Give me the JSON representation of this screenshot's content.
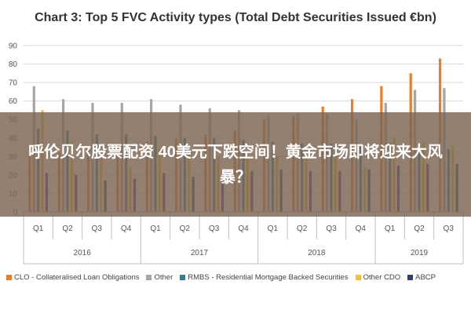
{
  "banner": {
    "text": "呼伦贝尔股票配资 40美元下跌空间！黄金市场即将迎来大风暴？"
  },
  "chart_data": {
    "type": "bar",
    "title": "Chart 3: Top 5 FVC Activity types (Total Debt Securities Issued €bn)",
    "xlabel": "",
    "ylabel": "",
    "ylim": [
      0,
      90
    ],
    "y_ticks": [
      0,
      10,
      20,
      30,
      40,
      50,
      60,
      70,
      80,
      90
    ],
    "grid": true,
    "legend_position": "bottom",
    "categories": [
      "Q1",
      "Q2",
      "Q3",
      "Q4",
      "Q1",
      "Q2",
      "Q3",
      "Q4",
      "Q1",
      "Q2",
      "Q3",
      "Q4",
      "Q1",
      "Q2",
      "Q3"
    ],
    "year_groups": [
      {
        "label": "2016",
        "count": 4
      },
      {
        "label": "2017",
        "count": 4
      },
      {
        "label": "2018",
        "count": 4
      },
      {
        "label": "2019",
        "count": 3
      }
    ],
    "series": [
      {
        "name": "CLO - Collateralised Loan Obligations",
        "color": "#e87d2a",
        "values": [
          30,
          32,
          34,
          36,
          38,
          40,
          42,
          44,
          50,
          52,
          57,
          61,
          68,
          75,
          83
        ]
      },
      {
        "name": "Other",
        "color": "#a5a5a5",
        "values": [
          68,
          61,
          59,
          59,
          61,
          58,
          56,
          55,
          52,
          53,
          53,
          50,
          59,
          66,
          67
        ]
      },
      {
        "name": "RMBS - Residential Mortgage Backed Securities",
        "color": "#2e7d9a",
        "values": [
          45,
          44,
          42,
          42,
          41,
          40,
          40,
          39,
          38,
          37,
          37,
          36,
          37,
          35,
          34
        ]
      },
      {
        "name": "Other CDO",
        "color": "#f2c12e",
        "values": [
          55,
          38,
          30,
          24,
          34,
          32,
          30,
          30,
          30,
          34,
          30,
          24,
          40,
          38,
          36
        ]
      },
      {
        "name": "ABCP",
        "color": "#2e3f7a",
        "values": [
          21,
          20,
          17,
          18,
          21,
          19,
          18,
          22,
          23,
          22,
          22,
          23,
          25,
          26,
          26
        ]
      }
    ]
  }
}
